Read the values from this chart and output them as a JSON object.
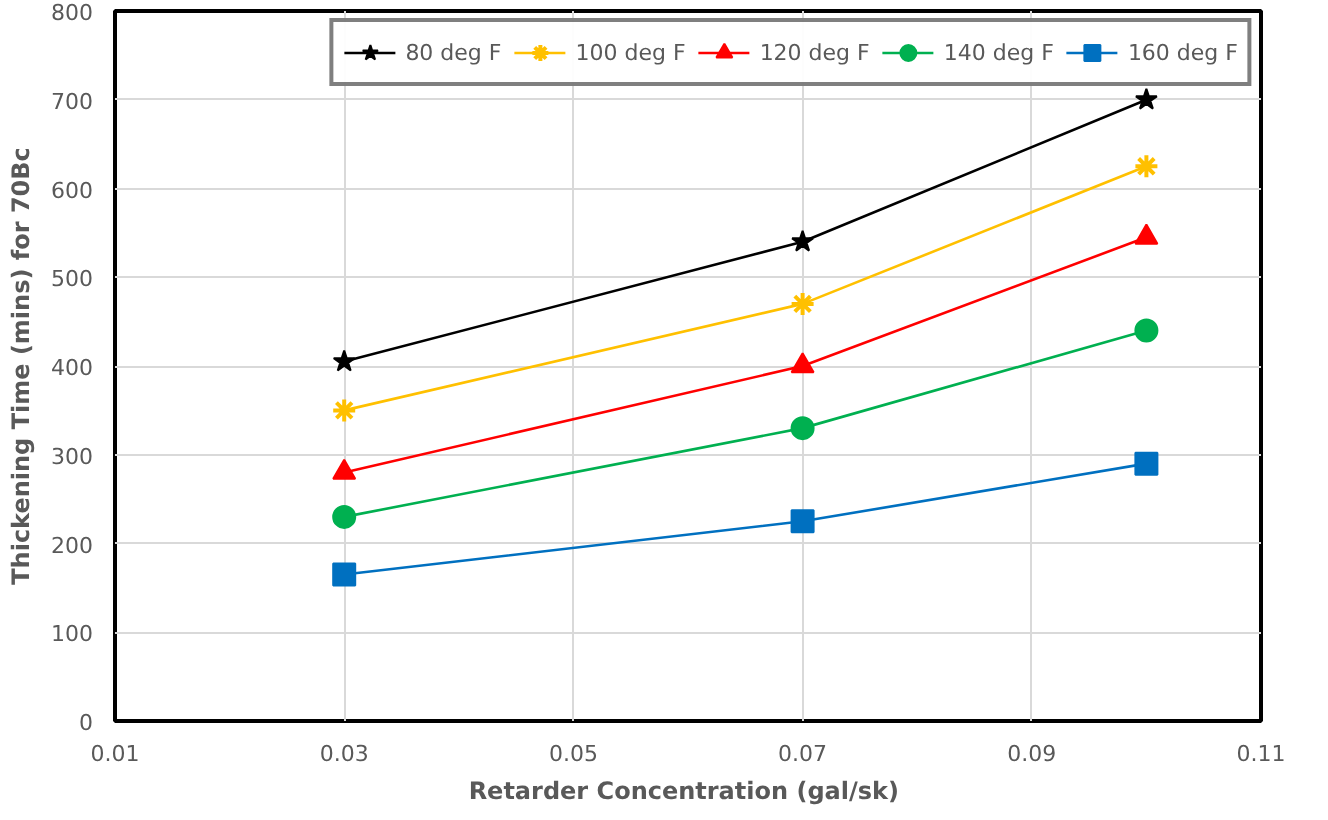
{
  "chart_data": {
    "type": "line",
    "xlabel": "Retarder Concentration  (gal/sk)",
    "ylabel": "Thickening Time (mins) for 70Bc",
    "x": [
      0.03,
      0.07,
      0.1
    ],
    "series": [
      {
        "name": "80 deg F",
        "color": "#000000",
        "marker": "star",
        "values": [
          405,
          540,
          700
        ]
      },
      {
        "name": "100 deg F",
        "color": "#ffc000",
        "marker": "cross",
        "values": [
          350,
          470,
          625
        ]
      },
      {
        "name": "120 deg F",
        "color": "#ff0000",
        "marker": "triangle",
        "values": [
          280,
          400,
          545
        ]
      },
      {
        "name": "140 deg F",
        "color": "#00b050",
        "marker": "circle",
        "values": [
          230,
          330,
          440
        ]
      },
      {
        "name": "160 deg F",
        "color": "#0070c0",
        "marker": "square",
        "values": [
          165,
          225,
          290
        ]
      }
    ],
    "xlim": [
      0.01,
      0.11
    ],
    "xticks": [
      {
        "value": 0.01,
        "label": "0.01"
      },
      {
        "value": 0.03,
        "label": "0.03"
      },
      {
        "value": 0.05,
        "label": "0.05"
      },
      {
        "value": 0.07,
        "label": "0.07"
      },
      {
        "value": 0.09,
        "label": "0.09"
      },
      {
        "value": 0.11,
        "label": "0.11"
      }
    ],
    "ylim": [
      0,
      800
    ],
    "yticks": [
      0,
      100,
      200,
      300,
      400,
      500,
      600,
      700,
      800
    ],
    "grid": true,
    "legend": "top right",
    "line_style": "solid"
  }
}
